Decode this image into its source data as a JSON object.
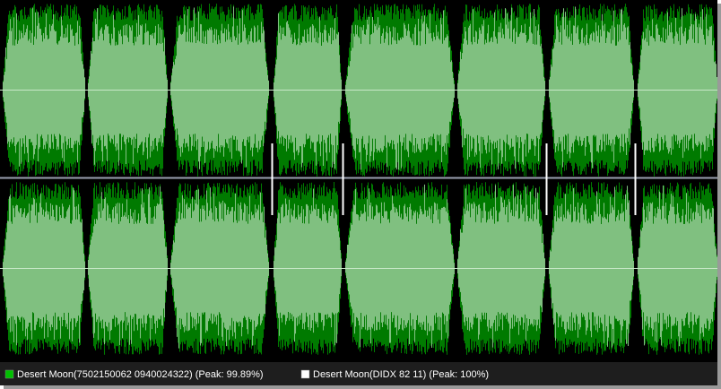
{
  "legend": {
    "items": [
      {
        "label": "Desert Moon(7502150062 0940024322) (Peak: 99.89%)",
        "color": "#00c000"
      },
      {
        "label": "Desert Moon(DIDX 82 11) (Peak: 100%)",
        "color": "#ffffff"
      }
    ]
  }
}
